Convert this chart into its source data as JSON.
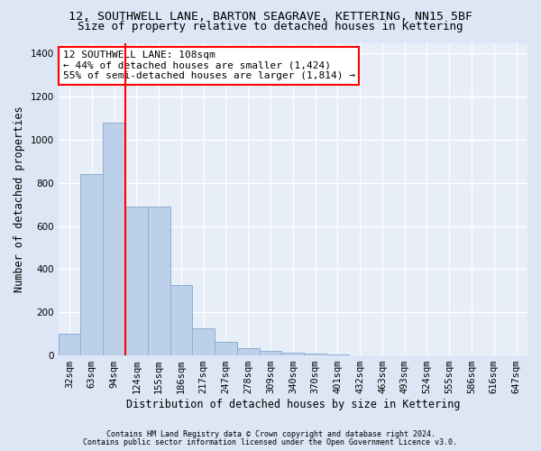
{
  "title_line1": "12, SOUTHWELL LANE, BARTON SEAGRAVE, KETTERING, NN15 5BF",
  "title_line2": "Size of property relative to detached houses in Kettering",
  "xlabel": "Distribution of detached houses by size in Kettering",
  "ylabel": "Number of detached properties",
  "footnote1": "Contains HM Land Registry data © Crown copyright and database right 2024.",
  "footnote2": "Contains public sector information licensed under the Open Government Licence v3.0.",
  "bar_labels": [
    "32sqm",
    "63sqm",
    "94sqm",
    "124sqm",
    "155sqm",
    "186sqm",
    "217sqm",
    "247sqm",
    "278sqm",
    "309sqm",
    "340sqm",
    "370sqm",
    "401sqm",
    "432sqm",
    "463sqm",
    "493sqm",
    "524sqm",
    "555sqm",
    "586sqm",
    "616sqm",
    "647sqm"
  ],
  "bar_values": [
    100,
    840,
    1080,
    690,
    690,
    325,
    125,
    65,
    35,
    22,
    12,
    8,
    5,
    0,
    0,
    0,
    0,
    0,
    0,
    0,
    0
  ],
  "bar_color": "#bdd0e9",
  "bar_edge_color": "#8aafd4",
  "vline_x": 2.5,
  "vline_color": "red",
  "annotation_text1": "12 SOUTHWELL LANE: 108sqm",
  "annotation_text2": "← 44% of detached houses are smaller (1,424)",
  "annotation_text3": "55% of semi-detached houses are larger (1,814) →",
  "annotation_box_facecolor": "white",
  "annotation_border_color": "red",
  "ylim": [
    0,
    1450
  ],
  "yticks": [
    0,
    200,
    400,
    600,
    800,
    1000,
    1200,
    1400
  ],
  "fig_background_color": "#dce6f5",
  "plot_background_color": "#e8eef8",
  "grid_color": "#ffffff",
  "title1_fontsize": 9.5,
  "title2_fontsize": 9,
  "annotation_fontsize": 8,
  "xlabel_fontsize": 8.5,
  "ylabel_fontsize": 8.5,
  "tick_fontsize": 7.5
}
